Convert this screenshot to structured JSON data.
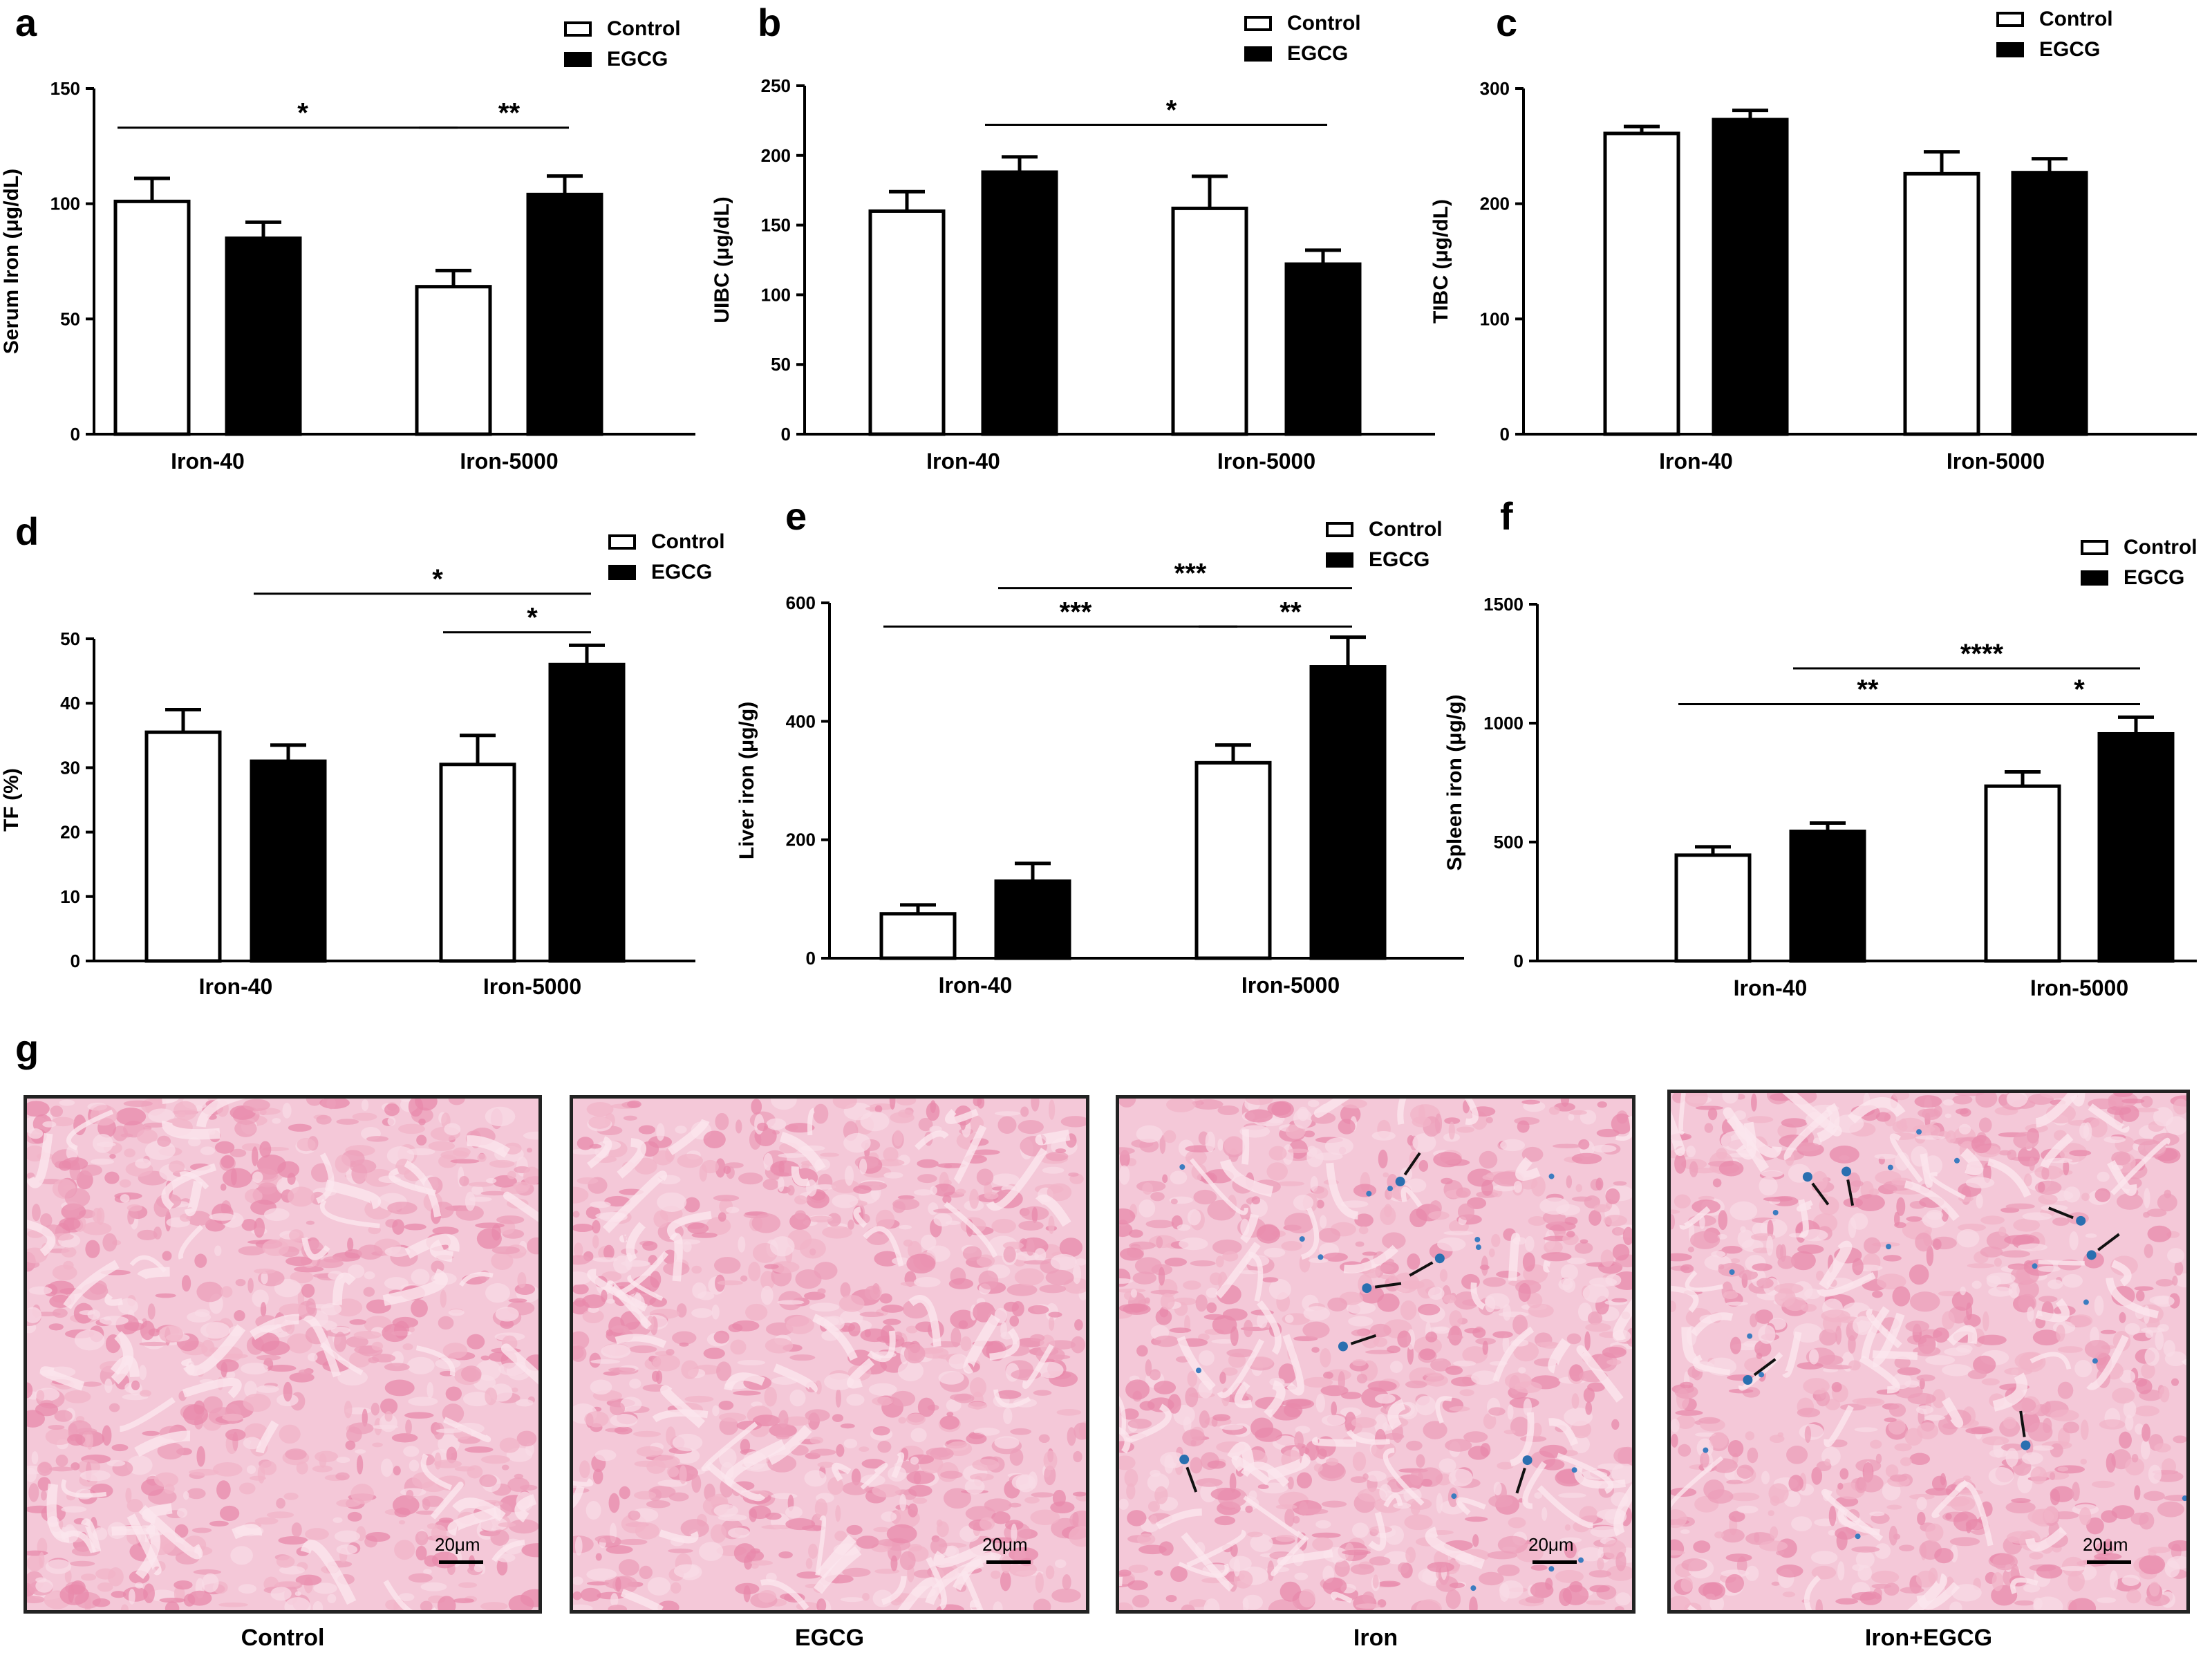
{
  "legend": {
    "control": "Control",
    "egcg": "EGCG"
  },
  "panel_labels": [
    "a",
    "b",
    "c",
    "d",
    "e",
    "f",
    "g"
  ],
  "chart_data": [
    {
      "id": "a",
      "type": "bar",
      "categories": [
        "Iron-40",
        "Iron-5000"
      ],
      "series": [
        {
          "name": "Control",
          "values": [
            101,
            64
          ],
          "errors": [
            10,
            7
          ]
        },
        {
          "name": "EGCG",
          "values": [
            85,
            104
          ],
          "errors": [
            7,
            8
          ]
        }
      ],
      "ylabel": "Serum Iron (μg/dL)",
      "ylim": [
        0,
        150
      ],
      "yticks": [
        0,
        50,
        100,
        150
      ],
      "significance": [
        {
          "from": [
            0,
            0
          ],
          "to": [
            1,
            0
          ],
          "label": "*",
          "level": 133
        },
        {
          "from": [
            1,
            0
          ],
          "to": [
            1,
            1
          ],
          "label": "**",
          "level": 133
        }
      ]
    },
    {
      "id": "b",
      "type": "bar",
      "categories": [
        "Iron-40",
        "Iron-5000"
      ],
      "series": [
        {
          "name": "Control",
          "values": [
            160,
            162
          ],
          "errors": [
            14,
            23
          ]
        },
        {
          "name": "EGCG",
          "values": [
            188,
            122
          ],
          "errors": [
            11,
            10
          ]
        }
      ],
      "ylabel": "UIBC (μg/dL)",
      "ylim": [
        0,
        250
      ],
      "yticks": [
        0,
        50,
        100,
        150,
        200,
        250
      ],
      "significance": [
        {
          "from": [
            0,
            1
          ],
          "to": [
            1,
            1
          ],
          "label": "*",
          "level": 222
        }
      ]
    },
    {
      "id": "c",
      "type": "bar",
      "categories": [
        "Iron-40",
        "Iron-5000"
      ],
      "series": [
        {
          "name": "Control",
          "values": [
            261,
            226
          ],
          "errors": [
            6,
            19
          ]
        },
        {
          "name": "EGCG",
          "values": [
            273,
            227
          ],
          "errors": [
            8,
            12
          ]
        }
      ],
      "ylabel": "TIBC (μg/dL)",
      "ylim": [
        0,
        300
      ],
      "yticks": [
        0,
        100,
        200,
        300
      ],
      "significance": []
    },
    {
      "id": "d",
      "type": "bar",
      "categories": [
        "Iron-40",
        "Iron-5000"
      ],
      "series": [
        {
          "name": "Control",
          "values": [
            35.5,
            30.5
          ],
          "errors": [
            3.5,
            4.5
          ]
        },
        {
          "name": "EGCG",
          "values": [
            31,
            46
          ],
          "errors": [
            2.5,
            3
          ]
        }
      ],
      "ylabel": "TF (%)",
      "ylim": [
        0,
        50
      ],
      "yticks": [
        0,
        10,
        20,
        30,
        40,
        50
      ],
      "significance": [
        {
          "from": [
            0,
            1
          ],
          "to": [
            1,
            1
          ],
          "label": "*",
          "level": 57
        },
        {
          "from": [
            1,
            0
          ],
          "to": [
            1,
            1
          ],
          "label": "*",
          "level": 51
        }
      ]
    },
    {
      "id": "e",
      "type": "bar",
      "categories": [
        "Iron-40",
        "Iron-5000"
      ],
      "series": [
        {
          "name": "Control",
          "values": [
            75,
            330
          ],
          "errors": [
            15,
            30
          ]
        },
        {
          "name": "EGCG",
          "values": [
            130,
            492
          ],
          "errors": [
            30,
            50
          ]
        }
      ],
      "ylabel": "Liver iron (μg/g)",
      "ylim": [
        0,
        600
      ],
      "yticks": [
        0,
        200,
        400,
        600
      ],
      "significance": [
        {
          "from": [
            0,
            1
          ],
          "to": [
            1,
            1
          ],
          "label": "***",
          "level": 625
        },
        {
          "from": [
            0,
            0
          ],
          "to": [
            1,
            0
          ],
          "label": "***",
          "level": 560
        },
        {
          "from": [
            1,
            0
          ],
          "to": [
            1,
            1
          ],
          "label": "**",
          "level": 560
        }
      ]
    },
    {
      "id": "f",
      "type": "bar",
      "categories": [
        "Iron-40",
        "Iron-5000"
      ],
      "series": [
        {
          "name": "Control",
          "values": [
            445,
            735
          ],
          "errors": [
            35,
            60
          ]
        },
        {
          "name": "EGCG",
          "values": [
            545,
            955
          ],
          "errors": [
            35,
            70
          ]
        }
      ],
      "ylabel": "Spleen iron (μg/g)",
      "ylim": [
        0,
        1500
      ],
      "yticks": [
        0,
        500,
        1000,
        1500
      ],
      "significance": [
        {
          "from": [
            0,
            1
          ],
          "to": [
            1,
            1
          ],
          "label": "****",
          "level": 1230
        },
        {
          "from": [
            0,
            0
          ],
          "to": [
            1,
            0
          ],
          "label": "**",
          "level": 1080
        },
        {
          "from": [
            1,
            0
          ],
          "to": [
            1,
            1
          ],
          "label": "*",
          "level": 1080
        }
      ]
    }
  ],
  "micrographs": [
    {
      "caption": "Control",
      "scale": "20μm",
      "arrows": 0
    },
    {
      "caption": "EGCG",
      "scale": "20μm",
      "arrows": 0
    },
    {
      "caption": "Iron",
      "scale": "20μm",
      "arrows": 6
    },
    {
      "caption": "Iron+EGCG",
      "scale": "20μm",
      "arrows": 6
    }
  ]
}
